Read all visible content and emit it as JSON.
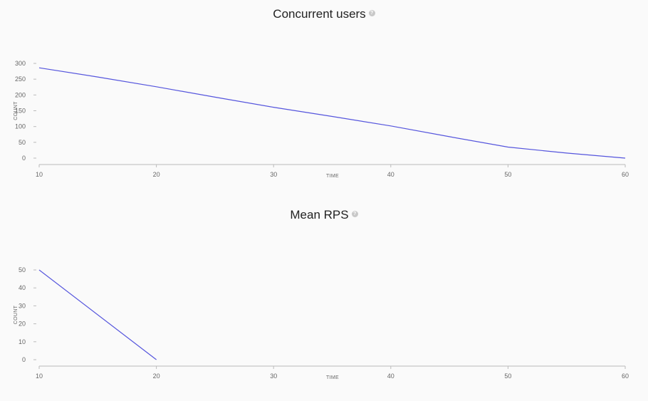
{
  "chart_data": [
    {
      "type": "line",
      "title": "Concurrent users",
      "help_icon": "question-circle-icon",
      "xlabel": "TIME",
      "ylabel": "COUNT",
      "xlim": [
        10,
        60
      ],
      "ylim": [
        0,
        300
      ],
      "x_ticks": [
        "10",
        "20",
        "30",
        "40",
        "50",
        "60"
      ],
      "y_ticks": [
        "0",
        "50",
        "100",
        "150",
        "200",
        "250",
        "300"
      ],
      "grid": false,
      "line_color": "#5555dd",
      "series": [
        {
          "x": [
            10,
            15,
            20,
            25,
            30,
            35,
            40,
            45,
            50,
            55,
            60
          ],
          "values": [
            286,
            257,
            226,
            193,
            161,
            132,
            102,
            68,
            35,
            16,
            0
          ]
        }
      ]
    },
    {
      "type": "line",
      "title": "Mean RPS",
      "help_icon": "question-circle-icon",
      "xlabel": "TIME",
      "ylabel": "COUNT",
      "xlim": [
        10,
        60
      ],
      "ylim": [
        0,
        50
      ],
      "x_ticks": [
        "10",
        "20",
        "30",
        "40",
        "50",
        "60"
      ],
      "y_ticks": [
        "0",
        "10",
        "20",
        "30",
        "40",
        "50"
      ],
      "grid": false,
      "line_color": "#5555dd",
      "series": [
        {
          "x": [
            10,
            20
          ],
          "values": [
            50,
            0
          ]
        }
      ]
    }
  ]
}
